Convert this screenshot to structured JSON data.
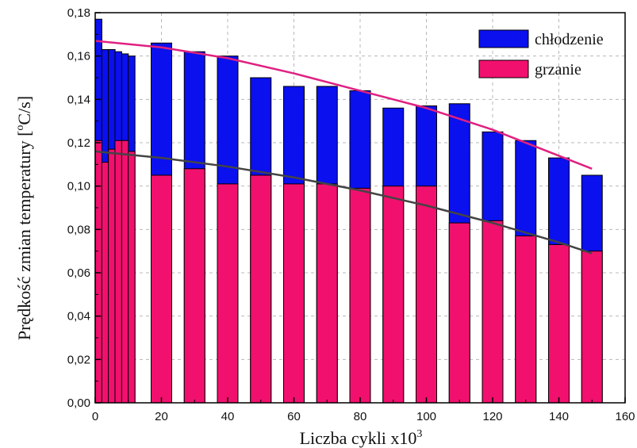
{
  "chart_data": {
    "type": "bar",
    "title": "",
    "xlabel": "Liczba cykli x10",
    "xlabel_superscript": "3",
    "ylabel": "Prędkość zmian temperatury [",
    "ylabel_superscript": "o",
    "ylabel_suffix": "C/s]",
    "xlim": [
      0,
      160
    ],
    "ylim": [
      0,
      0.18
    ],
    "x_ticks": [
      "0",
      "20",
      "40",
      "60",
      "80",
      "100",
      "120",
      "140",
      "160"
    ],
    "y_ticks": [
      "0,00",
      "0,02",
      "0,04",
      "0,06",
      "0,08",
      "0,10",
      "0,12",
      "0,14",
      "0,16",
      "0,18"
    ],
    "grid": true,
    "legend_position": "top-right",
    "x": [
      1,
      3,
      5,
      7,
      9,
      11,
      20,
      30,
      40,
      50,
      60,
      70,
      80,
      90,
      100,
      110,
      120,
      130,
      140,
      150
    ],
    "series": [
      {
        "name": "chłodzenie",
        "color": "#0a10ee",
        "values": [
          0.177,
          0.163,
          0.163,
          0.162,
          0.161,
          0.16,
          0.166,
          0.162,
          0.16,
          0.15,
          0.146,
          0.146,
          0.144,
          0.136,
          0.137,
          0.138,
          0.125,
          0.121,
          0.113,
          0.105
        ]
      },
      {
        "name": "grzanie",
        "color": "#f2106e",
        "values": [
          0.121,
          0.111,
          0.117,
          0.121,
          0.121,
          0.116,
          0.105,
          0.108,
          0.101,
          0.105,
          0.101,
          0.101,
          0.099,
          0.1,
          0.1,
          0.083,
          0.084,
          0.077,
          0.073,
          0.07
        ]
      }
    ],
    "trend_lines": [
      {
        "color": "#e02080",
        "x": [
          0,
          20,
          40,
          60,
          80,
          100,
          120,
          140,
          150
        ],
        "values": [
          0.167,
          0.164,
          0.159,
          0.152,
          0.144,
          0.136,
          0.126,
          0.114,
          0.108
        ]
      },
      {
        "color": "#444444",
        "x": [
          0,
          20,
          40,
          60,
          80,
          100,
          120,
          140,
          150
        ],
        "values": [
          0.116,
          0.113,
          0.109,
          0.104,
          0.098,
          0.091,
          0.083,
          0.074,
          0.069
        ]
      }
    ]
  }
}
